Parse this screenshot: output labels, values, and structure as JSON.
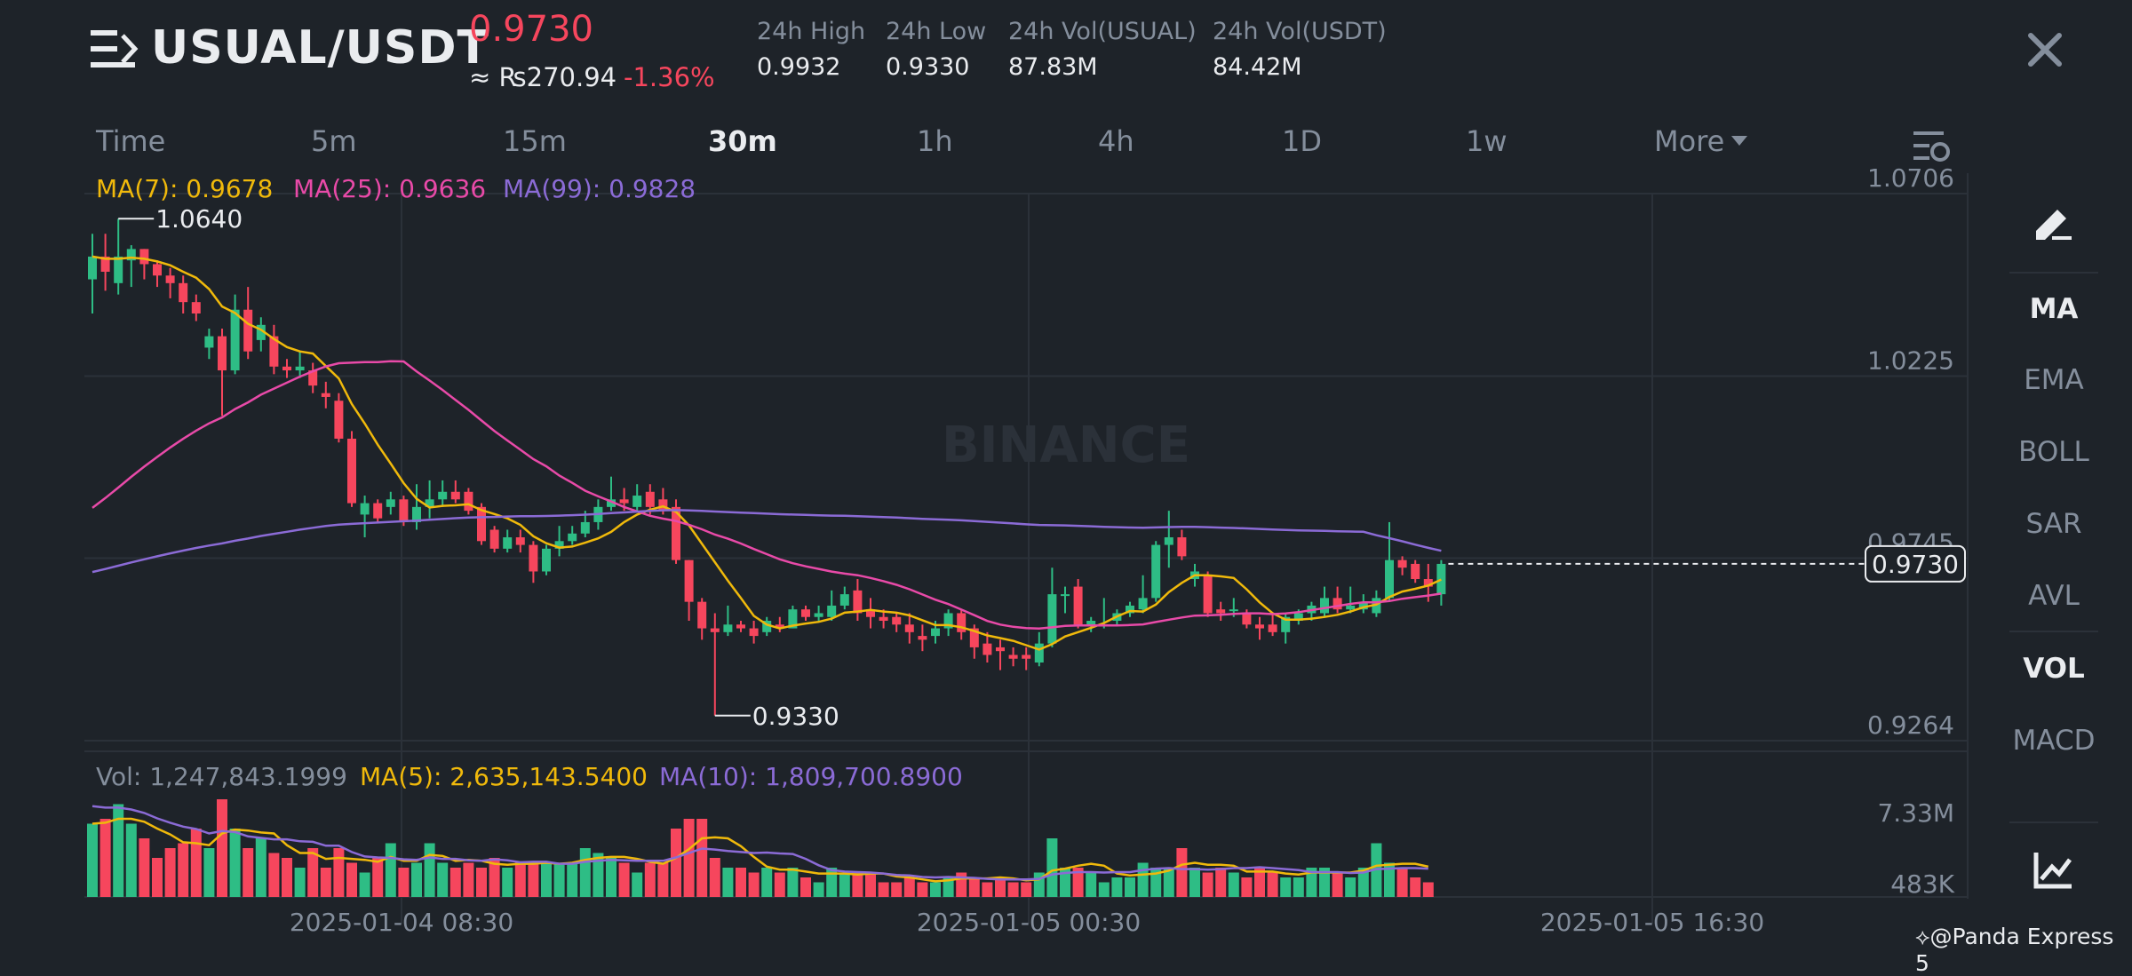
{
  "header": {
    "pair": "USUAL/USDT",
    "last_price": "0.9730",
    "approx_local": "≈ ₨270.94",
    "change_pct": "-1.36%",
    "stats": [
      {
        "label": "24h High",
        "value": "0.9932"
      },
      {
        "label": "24h Low",
        "value": "0.9330"
      },
      {
        "label": "24h Vol(USUAL)",
        "value": "87.83M"
      },
      {
        "label": "24h Vol(USDT)",
        "value": "84.42M"
      }
    ]
  },
  "intervals": [
    "Time",
    "5m",
    "15m",
    "30m",
    "1h",
    "4h",
    "1D",
    "1w",
    "More"
  ],
  "active_interval": "30m",
  "indicators": {
    "ma7": "MA(7): 0.9678",
    "ma25": "MA(25): 0.9636",
    "ma99": "MA(99): 0.9828",
    "vol": "Vol: 1,247,843.1999",
    "vol_ma5": "MA(5): 2,635,143.5400",
    "vol_ma10": "MA(10): 1,809,700.8900"
  },
  "side_toolbar": [
    "MA",
    "EMA",
    "BOLL",
    "SAR",
    "AVL",
    "VOL",
    "MACD"
  ],
  "side_active": [
    "MA",
    "VOL"
  ],
  "watermark": "BINANCE",
  "credit": "@Panda Express 5",
  "chart_data": {
    "type": "candlestick",
    "price_axis": [
      "1.0706",
      "1.0225",
      "0.9745",
      "0.9264"
    ],
    "volume_axis": [
      "7.33M",
      "483K"
    ],
    "time_axis": [
      "2025-01-04 08:30",
      "2025-01-05 00:30",
      "2025-01-05 16:30"
    ],
    "high_marker": "1.0640",
    "low_marker": "0.9330",
    "current_price_tag": "0.9730",
    "ylim": [
      0.9264,
      1.0706
    ],
    "colors": {
      "up": "#2ebd85",
      "down": "#f6465d",
      "ma7": "#f0b90b",
      "ma25": "#e84aa8",
      "ma99": "#8b6bd6"
    },
    "candles": [
      [
        1.048,
        1.054,
        1.06,
        1.039
      ],
      [
        1.054,
        1.05,
        1.06,
        1.045
      ],
      [
        1.047,
        1.054,
        1.064,
        1.044
      ],
      [
        1.053,
        1.056,
        1.057,
        1.046
      ],
      [
        1.056,
        1.052,
        1.056,
        1.048
      ],
      [
        1.052,
        1.049,
        1.053,
        1.046
      ],
      [
        1.049,
        1.047,
        1.051,
        1.043
      ],
      [
        1.047,
        1.042,
        1.049,
        1.039
      ],
      [
        1.042,
        1.039,
        1.044,
        1.037
      ],
      [
        1.03,
        1.033,
        1.035,
        1.027
      ],
      [
        1.033,
        1.024,
        1.035,
        1.012
      ],
      [
        1.024,
        1.04,
        1.044,
        1.023
      ],
      [
        1.04,
        1.029,
        1.046,
        1.027
      ],
      [
        1.032,
        1.036,
        1.038,
        1.029
      ],
      [
        1.033,
        1.025,
        1.036,
        1.023
      ],
      [
        1.025,
        1.024,
        1.027,
        1.022
      ],
      [
        1.024,
        1.025,
        1.029,
        1.022
      ],
      [
        1.024,
        1.02,
        1.026,
        1.018
      ],
      [
        1.018,
        1.017,
        1.021,
        1.014
      ],
      [
        1.016,
        1.006,
        1.018,
        1.005
      ],
      [
        1.006,
        0.989,
        1.008,
        0.988
      ],
      [
        0.986,
        0.989,
        0.991,
        0.98
      ],
      [
        0.989,
        0.985,
        0.99,
        0.984
      ],
      [
        0.988,
        0.99,
        0.992,
        0.986
      ],
      [
        0.99,
        0.984,
        0.991,
        0.983
      ],
      [
        0.984,
        0.988,
        0.994,
        0.982
      ],
      [
        0.988,
        0.99,
        0.995,
        0.985
      ],
      [
        0.99,
        0.992,
        0.995,
        0.988
      ],
      [
        0.992,
        0.99,
        0.995,
        0.989
      ],
      [
        0.992,
        0.987,
        0.993,
        0.986
      ],
      [
        0.988,
        0.979,
        0.989,
        0.978
      ],
      [
        0.982,
        0.977,
        0.983,
        0.976
      ],
      [
        0.977,
        0.98,
        0.982,
        0.976
      ],
      [
        0.98,
        0.978,
        0.982,
        0.976
      ],
      [
        0.978,
        0.971,
        0.979,
        0.968
      ],
      [
        0.971,
        0.977,
        0.978,
        0.97
      ],
      [
        0.977,
        0.979,
        0.983,
        0.975
      ],
      [
        0.979,
        0.981,
        0.983,
        0.978
      ],
      [
        0.981,
        0.984,
        0.987,
        0.98
      ],
      [
        0.984,
        0.988,
        0.99,
        0.982
      ],
      [
        0.988,
        0.99,
        0.996,
        0.987
      ],
      [
        0.99,
        0.989,
        0.993,
        0.987
      ],
      [
        0.988,
        0.991,
        0.994,
        0.987
      ],
      [
        0.992,
        0.988,
        0.994,
        0.986
      ],
      [
        0.99,
        0.987,
        0.993,
        0.986
      ],
      [
        0.988,
        0.974,
        0.99,
        0.973
      ],
      [
        0.974,
        0.963,
        0.974,
        0.958
      ],
      [
        0.963,
        0.956,
        0.964,
        0.953
      ],
      [
        0.956,
        0.955,
        0.96,
        0.933
      ],
      [
        0.955,
        0.957,
        0.962,
        0.954
      ],
      [
        0.957,
        0.956,
        0.958,
        0.955
      ],
      [
        0.956,
        0.954,
        0.958,
        0.952
      ],
      [
        0.955,
        0.958,
        0.959,
        0.954
      ],
      [
        0.957,
        0.956,
        0.959,
        0.955
      ],
      [
        0.956,
        0.961,
        0.962,
        0.956
      ],
      [
        0.961,
        0.959,
        0.962,
        0.958
      ],
      [
        0.959,
        0.96,
        0.962,
        0.958
      ],
      [
        0.959,
        0.962,
        0.966,
        0.958
      ],
      [
        0.962,
        0.965,
        0.967,
        0.961
      ],
      [
        0.966,
        0.96,
        0.969,
        0.958
      ],
      [
        0.961,
        0.959,
        0.964,
        0.956
      ],
      [
        0.959,
        0.958,
        0.961,
        0.956
      ],
      [
        0.959,
        0.957,
        0.96,
        0.955
      ],
      [
        0.957,
        0.955,
        0.96,
        0.952
      ],
      [
        0.954,
        0.953,
        0.957,
        0.95
      ],
      [
        0.954,
        0.956,
        0.958,
        0.952
      ],
      [
        0.956,
        0.96,
        0.961,
        0.954
      ],
      [
        0.96,
        0.955,
        0.961,
        0.953
      ],
      [
        0.956,
        0.951,
        0.957,
        0.948
      ],
      [
        0.952,
        0.949,
        0.955,
        0.947
      ],
      [
        0.951,
        0.95,
        0.953,
        0.945
      ],
      [
        0.949,
        0.948,
        0.951,
        0.946
      ],
      [
        0.949,
        0.948,
        0.951,
        0.945
      ],
      [
        0.947,
        0.952,
        0.955,
        0.946
      ],
      [
        0.952,
        0.965,
        0.972,
        0.951
      ],
      [
        0.965,
        0.965,
        0.967,
        0.96
      ],
      [
        0.967,
        0.957,
        0.969,
        0.956
      ],
      [
        0.957,
        0.958,
        0.959,
        0.955
      ],
      [
        0.957,
        0.957,
        0.964,
        0.956
      ],
      [
        0.958,
        0.96,
        0.961,
        0.957
      ],
      [
        0.96,
        0.962,
        0.963,
        0.959
      ],
      [
        0.961,
        0.964,
        0.97,
        0.96
      ],
      [
        0.964,
        0.978,
        0.979,
        0.963
      ],
      [
        0.978,
        0.98,
        0.987,
        0.972
      ],
      [
        0.98,
        0.975,
        0.982,
        0.974
      ],
      [
        0.969,
        0.971,
        0.973,
        0.967
      ],
      [
        0.97,
        0.96,
        0.971,
        0.959
      ],
      [
        0.961,
        0.96,
        0.963,
        0.958
      ],
      [
        0.961,
        0.961,
        0.964,
        0.959
      ],
      [
        0.96,
        0.957,
        0.961,
        0.956
      ],
      [
        0.957,
        0.956,
        0.959,
        0.953
      ],
      [
        0.957,
        0.955,
        0.96,
        0.954
      ],
      [
        0.955,
        0.959,
        0.96,
        0.952
      ],
      [
        0.958,
        0.96,
        0.961,
        0.957
      ],
      [
        0.96,
        0.962,
        0.963,
        0.958
      ],
      [
        0.96,
        0.964,
        0.967,
        0.959
      ],
      [
        0.964,
        0.961,
        0.967,
        0.96
      ],
      [
        0.961,
        0.962,
        0.967,
        0.96
      ],
      [
        0.961,
        0.963,
        0.965,
        0.96
      ],
      [
        0.96,
        0.964,
        0.966,
        0.959
      ],
      [
        0.964,
        0.974,
        0.984,
        0.963
      ],
      [
        0.974,
        0.972,
        0.975,
        0.97
      ],
      [
        0.973,
        0.969,
        0.974,
        0.968
      ],
      [
        0.969,
        0.967,
        0.973,
        0.963
      ],
      [
        0.965,
        0.973,
        0.974,
        0.962
      ]
    ],
    "volumes": [
      1.5,
      1.6,
      1.9,
      1.5,
      1.2,
      0.8,
      1.0,
      1.1,
      1.4,
      1.0,
      2.0,
      1.4,
      1.0,
      1.2,
      0.9,
      0.8,
      0.6,
      1.0,
      0.6,
      1.0,
      0.7,
      0.5,
      0.8,
      1.1,
      0.6,
      0.7,
      1.1,
      0.7,
      0.6,
      0.7,
      0.6,
      0.8,
      0.6,
      0.7,
      0.7,
      0.7,
      0.7,
      0.7,
      1.0,
      0.9,
      0.8,
      0.7,
      0.5,
      0.7,
      0.7,
      1.4,
      1.6,
      1.6,
      0.8,
      0.6,
      0.6,
      0.5,
      0.6,
      0.5,
      0.6,
      0.4,
      0.3,
      0.6,
      0.5,
      0.5,
      0.5,
      0.3,
      0.3,
      0.4,
      0.3,
      0.3,
      0.4,
      0.5,
      0.4,
      0.3,
      0.4,
      0.3,
      0.3,
      0.5,
      1.2,
      0.6,
      0.6,
      0.5,
      0.3,
      0.4,
      0.4,
      0.7,
      0.6,
      0.6,
      1.0,
      0.6,
      0.5,
      0.6,
      0.5,
      0.4,
      0.6,
      0.5,
      0.4,
      0.4,
      0.6,
      0.6,
      0.5,
      0.4,
      0.6,
      1.1,
      0.7,
      0.6,
      0.4,
      0.3
    ]
  }
}
